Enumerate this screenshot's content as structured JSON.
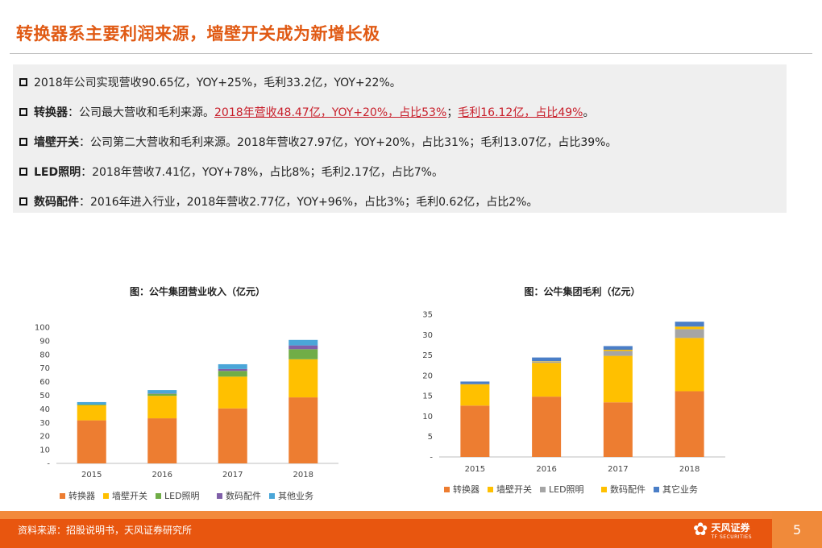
{
  "header": {
    "title": "转换器系主要利润来源，墙壁开关成为新增长极"
  },
  "bullets": [
    {
      "key": "",
      "text": "2018年公司实现营收90.65亿，YOY+25%，毛利33.2亿，YOY+22%。"
    },
    {
      "key": "转换器",
      "text": "：公司最大营收和毛利来源。",
      "hl1": "2018年营收48.47亿，YOY+20%，占比53%",
      "sep": "；",
      "hl2": "毛利16.12亿，占比49%",
      "end": "。"
    },
    {
      "key": "墙壁开关",
      "text": "：公司第二大营收和毛利来源。2018年营收27.97亿，YOY+20%，占比31%；毛利13.07亿，占比39%。"
    },
    {
      "key": "LED照明",
      "text": "：2018年营收7.41亿，YOY+78%，占比8%；毛利2.17亿，占比7%。"
    },
    {
      "key": "数码配件",
      "text": "：2016年进入行业，2018年营收2.77亿，YOY+96%，占比3%；毛利0.62亿，占比2%。"
    }
  ],
  "footer": {
    "source": "资料来源：招股说明书，天风证券研究所",
    "page": "5",
    "logo_cn": "天风证券",
    "logo_en": "TF SECURITIES"
  },
  "chart_data": [
    {
      "type": "bar",
      "stacked": true,
      "title": "图：公牛集团营业收入（亿元）",
      "categories": [
        "2015",
        "2016",
        "2017",
        "2018"
      ],
      "ylim": [
        0,
        100
      ],
      "yticks": [
        "-",
        "10",
        "20",
        "30",
        "40",
        "50",
        "60",
        "70",
        "80",
        "90",
        "100"
      ],
      "legend_position": "bottom",
      "series": [
        {
          "name": "转换器",
          "color": "#ed7d31",
          "values": [
            31.6,
            33.1,
            40.4,
            48.47
          ]
        },
        {
          "name": "墙壁开关",
          "color": "#ffc000",
          "values": [
            11.1,
            16.5,
            23.3,
            27.97
          ]
        },
        {
          "name": "LED照明",
          "color": "#70ad47",
          "values": [
            0.5,
            1.5,
            4.2,
            7.41
          ]
        },
        {
          "name": "数码配件",
          "color": "#7f5fa8",
          "values": [
            0.0,
            0.3,
            1.4,
            2.77
          ]
        },
        {
          "name": "其他业务",
          "color": "#4aa6d8",
          "values": [
            1.8,
            2.4,
            3.5,
            4.03
          ]
        }
      ]
    },
    {
      "type": "bar",
      "stacked": true,
      "title": "图：公牛集团毛利（亿元）",
      "categories": [
        "2015",
        "2016",
        "2017",
        "2018"
      ],
      "ylim": [
        0,
        35
      ],
      "yticks": [
        "-",
        "5",
        "10",
        "15",
        "20",
        "25",
        "30",
        "35"
      ],
      "legend_position": "bottom",
      "series": [
        {
          "name": "转换器",
          "color": "#ed7d31",
          "values": [
            12.6,
            14.8,
            13.4,
            16.12
          ]
        },
        {
          "name": "墙壁开关",
          "color": "#ffc000",
          "values": [
            5.2,
            8.3,
            11.4,
            13.07
          ]
        },
        {
          "name": "LED照明",
          "color": "#a5a5a5",
          "values": [
            0.1,
            0.3,
            1.2,
            2.17
          ]
        },
        {
          "name": "数码配件",
          "color": "#ffc000",
          "values": [
            0.0,
            0.1,
            0.3,
            0.62
          ]
        },
        {
          "name": "其它业务",
          "color": "#4a7ec7",
          "values": [
            0.6,
            0.9,
            0.9,
            1.2
          ]
        }
      ]
    }
  ]
}
